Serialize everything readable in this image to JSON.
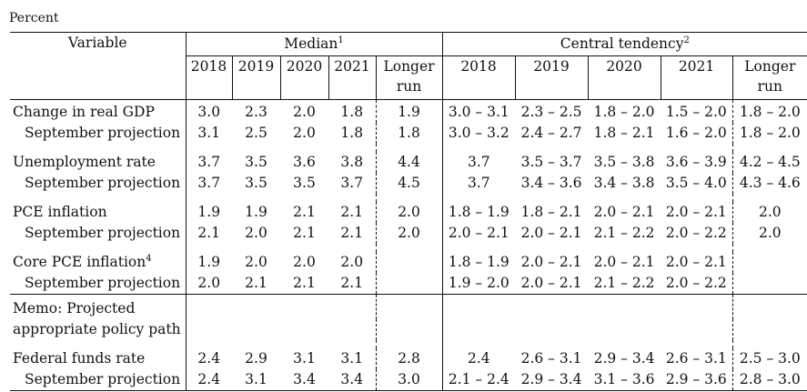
{
  "unit_label": "Percent",
  "headers": {
    "variable": "Variable",
    "median": "Median",
    "median_note": "1",
    "central_tendency": "Central tendency",
    "central_tendency_note": "2",
    "years": [
      "2018",
      "2019",
      "2020",
      "2021"
    ],
    "longer_run_line1": "Longer",
    "longer_run_line2": "run"
  },
  "rows": {
    "gdp": {
      "label": "Change in real GDP",
      "median": [
        "3.0",
        "2.3",
        "2.0",
        "1.8",
        "1.9"
      ],
      "ct": [
        "3.0 – 3.1",
        "2.3 – 2.5",
        "1.8 – 2.0",
        "1.5 – 2.0",
        "1.8 – 2.0"
      ]
    },
    "gdp_sep": {
      "label": "September projection",
      "median": [
        "3.1",
        "2.5",
        "2.0",
        "1.8",
        "1.8"
      ],
      "ct": [
        "3.0 – 3.2",
        "2.4 – 2.7",
        "1.8 – 2.1",
        "1.6 – 2.0",
        "1.8 – 2.0"
      ]
    },
    "unemp": {
      "label": "Unemployment rate",
      "median": [
        "3.7",
        "3.5",
        "3.6",
        "3.8",
        "4.4"
      ],
      "ct": [
        "3.7",
        "3.5 – 3.7",
        "3.5 – 3.8",
        "3.6 – 3.9",
        "4.2 – 4.5"
      ]
    },
    "unemp_sep": {
      "label": "September projection",
      "median": [
        "3.7",
        "3.5",
        "3.5",
        "3.7",
        "4.5"
      ],
      "ct": [
        "3.7",
        "3.4 – 3.6",
        "3.4 – 3.8",
        "3.5 – 4.0",
        "4.3 – 4.6"
      ]
    },
    "pce": {
      "label": "PCE inflation",
      "median": [
        "1.9",
        "1.9",
        "2.1",
        "2.1",
        "2.0"
      ],
      "ct": [
        "1.8 – 1.9",
        "1.8 – 2.1",
        "2.0 – 2.1",
        "2.0 – 2.1",
        "2.0"
      ]
    },
    "pce_sep": {
      "label": "September projection",
      "median": [
        "2.1",
        "2.0",
        "2.1",
        "2.1",
        "2.0"
      ],
      "ct": [
        "2.0 – 2.1",
        "2.0 – 2.1",
        "2.1 – 2.2",
        "2.0 – 2.2",
        "2.0"
      ]
    },
    "core": {
      "label": "Core PCE inflation",
      "note": "4",
      "median": [
        "1.9",
        "2.0",
        "2.0",
        "2.0",
        ""
      ],
      "ct": [
        "1.8 – 1.9",
        "2.0 – 2.1",
        "2.0 – 2.1",
        "2.0 – 2.1",
        ""
      ]
    },
    "core_sep": {
      "label": "September projection",
      "median": [
        "2.0",
        "2.1",
        "2.1",
        "2.1",
        ""
      ],
      "ct": [
        "1.9 – 2.0",
        "2.0 – 2.1",
        "2.1 – 2.2",
        "2.0 – 2.2",
        ""
      ]
    },
    "ffr": {
      "label": "Federal funds rate",
      "median": [
        "2.4",
        "2.9",
        "3.1",
        "3.1",
        "2.8"
      ],
      "ct": [
        "2.4",
        "2.6 – 3.1",
        "2.9 – 3.4",
        "2.6 – 3.1",
        "2.5 – 3.0"
      ]
    },
    "ffr_sep": {
      "label": "September projection",
      "median": [
        "2.4",
        "3.1",
        "3.4",
        "3.4",
        "3.0"
      ],
      "ct": [
        "2.1 – 2.4",
        "2.9 – 3.4",
        "3.1 – 3.6",
        "2.9 – 3.6",
        "2.8 – 3.0"
      ]
    }
  },
  "memo": {
    "line1": "Memo: Projected",
    "line2": "appropriate policy path"
  }
}
